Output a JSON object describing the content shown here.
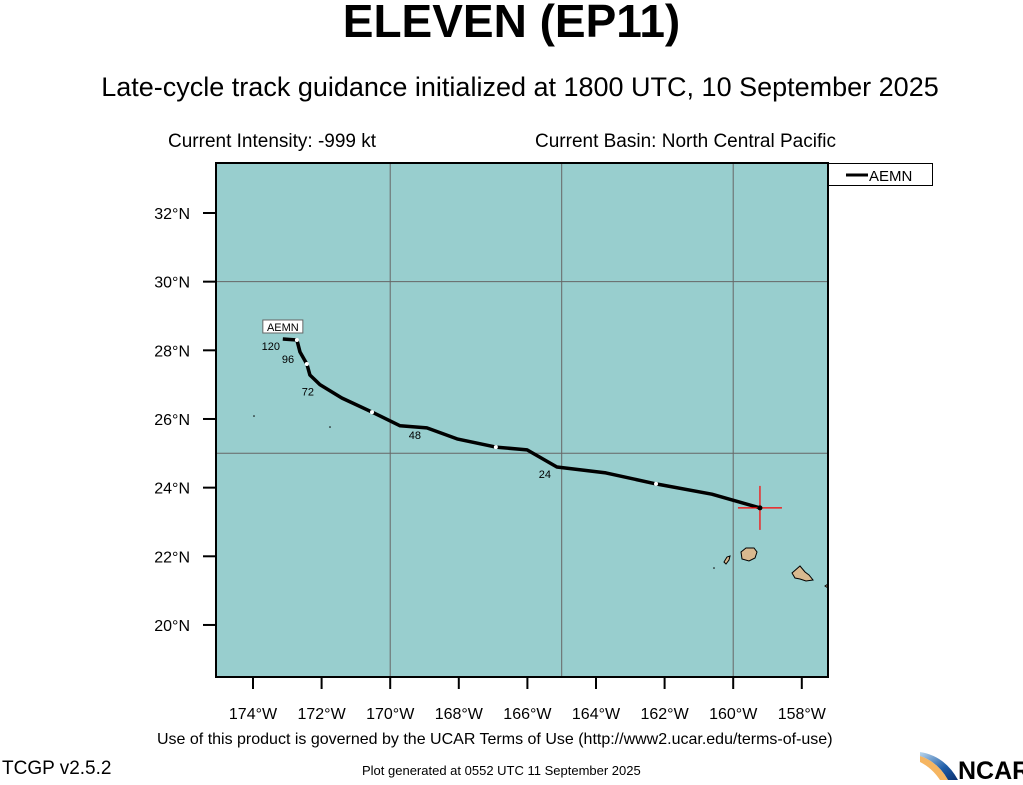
{
  "header": {
    "title": "ELEVEN (EP11)",
    "subtitle": "Late-cycle track guidance initialized at 1800 UTC, 10 September 2025",
    "intensity": "Current Intensity: -999 kt",
    "basin": "Current Basin: North Central Pacific"
  },
  "footer": {
    "terms": "Use of this product is governed by the UCAR Terms of Use (http://www2.ucar.edu/terms-of-use)",
    "version": "TCGP v2.5.2",
    "generated": "Plot generated at 0552 UTC   11 September 2025",
    "logo_text": "NCAR"
  },
  "colors": {
    "ocean": "#98cece",
    "land": "#d9b98f",
    "track": "#000000",
    "current_marker": "#ff0000",
    "grid": "#666666"
  },
  "chart_data": {
    "type": "map",
    "lon_range_W": [
      175.1,
      157.2
    ],
    "lat_range_N": [
      18.5,
      33.46
    ],
    "x_ticks": [
      "174°W",
      "172°W",
      "170°W",
      "168°W",
      "166°W",
      "164°W",
      "162°W",
      "160°W",
      "158°W"
    ],
    "x_tick_values": [
      174,
      172,
      170,
      168,
      166,
      164,
      162,
      160,
      158
    ],
    "y_ticks": [
      "32°N",
      "30°N",
      "28°N",
      "26°N",
      "24°N",
      "22°N",
      "20°N"
    ],
    "y_tick_values": [
      32,
      30,
      28,
      26,
      24,
      22,
      20
    ],
    "grid_lon": [
      170,
      165,
      160
    ],
    "grid_lat": [
      30,
      25
    ],
    "legend": {
      "entries": [
        "AEMN"
      ],
      "placement": "top-right outside"
    },
    "current_position": {
      "lat": 23.41,
      "lon_W": 159.22
    },
    "series": [
      {
        "name": "AEMN",
        "end_label": "AEMN",
        "points": [
          {
            "lat": 23.41,
            "lon_W": 159.22
          },
          {
            "lat": 23.81,
            "lon_W": 160.62
          },
          {
            "lat": 24.11,
            "lon_W": 162.25,
            "dot": true
          },
          {
            "lat": 24.43,
            "lon_W": 163.71
          },
          {
            "lat": 24.6,
            "lon_W": 165.14,
            "tau": "24"
          },
          {
            "lat": 25.1,
            "lon_W": 166.01
          },
          {
            "lat": 25.18,
            "lon_W": 166.92,
            "dot": true
          },
          {
            "lat": 25.42,
            "lon_W": 168.05
          },
          {
            "lat": 25.74,
            "lon_W": 168.93,
            "tau": "48"
          },
          {
            "lat": 25.8,
            "lon_W": 169.71
          },
          {
            "lat": 26.2,
            "lon_W": 170.53,
            "dot": true
          },
          {
            "lat": 26.61,
            "lon_W": 171.41
          },
          {
            "lat": 27.0,
            "lon_W": 172.05,
            "tau": "72"
          },
          {
            "lat": 27.28,
            "lon_W": 172.34
          },
          {
            "lat": 27.6,
            "lon_W": 172.43,
            "dot": true
          },
          {
            "lat": 27.95,
            "lon_W": 172.63,
            "tau": "96"
          },
          {
            "lat": 28.3,
            "lon_W": 172.72,
            "dot": true
          },
          {
            "lat": 28.33,
            "lon_W": 173.13,
            "tau": "120"
          }
        ]
      }
    ]
  }
}
